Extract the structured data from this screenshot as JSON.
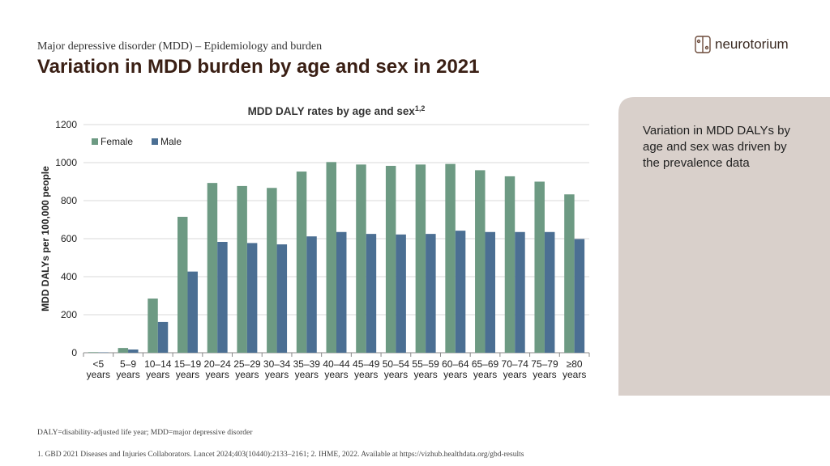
{
  "header": {
    "subtitle": "Major depressive disorder (MDD) – Epidemiology and burden",
    "title": "Variation in MDD burden by age and sex in 2021"
  },
  "logo": "neurotorium",
  "chart_data": {
    "type": "bar",
    "title": "MDD DALY rates by age and sex",
    "title_superscript": "1,2",
    "y_label": "MDD DALYs per 100,000 people",
    "categories": [
      [
        "<5",
        "years"
      ],
      [
        "5–9",
        "years"
      ],
      [
        "10–14",
        "years"
      ],
      [
        "15–19",
        "years"
      ],
      [
        "20–24",
        "years"
      ],
      [
        "25–29",
        "years"
      ],
      [
        "30–34",
        "years"
      ],
      [
        "35–39",
        "years"
      ],
      [
        "40–44",
        "years"
      ],
      [
        "45–49",
        "years"
      ],
      [
        "50–54",
        "years"
      ],
      [
        "55–59",
        "years"
      ],
      [
        "60–64",
        "years"
      ],
      [
        "65–69",
        "years"
      ],
      [
        "70–74",
        "years"
      ],
      [
        "75–79",
        "years"
      ],
      [
        "≥80",
        "years"
      ]
    ],
    "series": [
      {
        "name": "Female",
        "color": "#6d9a83",
        "values": [
          3,
          25,
          285,
          715,
          893,
          877,
          867,
          953,
          1003,
          990,
          983,
          990,
          993,
          960,
          928,
          900,
          833
        ]
      },
      {
        "name": "Male",
        "color": "#4b6f93",
        "values": [
          2,
          17,
          162,
          427,
          583,
          577,
          570,
          612,
          635,
          625,
          622,
          625,
          642,
          635,
          635,
          635,
          598
        ]
      }
    ],
    "ylim": [
      0,
      1200
    ],
    "yticks": [
      0,
      200,
      400,
      600,
      800,
      1000,
      1200
    ],
    "grid": true,
    "legend": "top-left"
  },
  "sidebar": {
    "text": [
      "Variation in MDD DALYs by",
      "age and sex was driven by",
      "the prevalence data"
    ]
  },
  "footnotes": [
    "DALY=disability-adjusted life year; MDD=major depressive disorder",
    "1. GBD 2021 Diseases and Injuries Collaborators. Lancet 2024;403(10440):2133–2161; 2. IHME, 2022. Available at https://vizhub.healthdata.org/gbd-results"
  ]
}
